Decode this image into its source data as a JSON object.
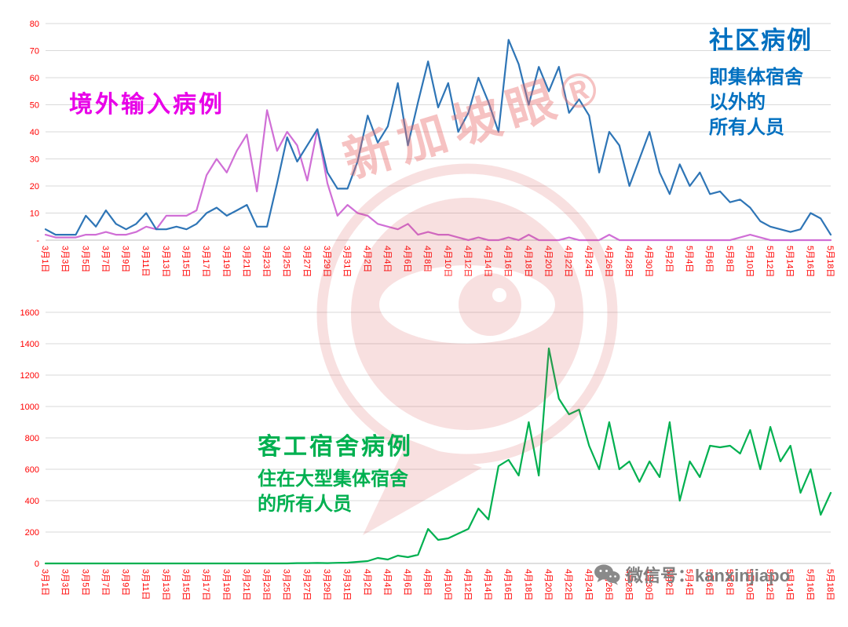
{
  "page": {
    "background": "#ffffff"
  },
  "watermark": {
    "text": "新加坡眼®",
    "color": "#e57373"
  },
  "footer": {
    "wechat_label": "微信号：kanxinjiapo",
    "color": "#7f7f7f"
  },
  "annotations": {
    "imported": {
      "text": "境外输入病例",
      "color": "#e800e8"
    },
    "community": {
      "title": "社区病例",
      "line1": "即集体宿舍",
      "line2": "以外的",
      "line3": "所有人员",
      "color": "#0070c0"
    },
    "dorm": {
      "title": "客工宿舍病例",
      "line1": "住在大型集体宿舍",
      "line2": "的所有人员",
      "color": "#00b050"
    }
  },
  "chart_data": [
    {
      "type": "line",
      "title": "",
      "xlabel": "",
      "ylabel": "",
      "ylim": [
        0,
        80
      ],
      "ytick_step": 10,
      "zero_label": "-",
      "axis_color": "#ff0000",
      "grid_color": "#d9d9d9",
      "grid": true,
      "legend_position": "inline-annotations",
      "xlabel_every": 2,
      "x": [
        "3月1日",
        "3月2日",
        "3月3日",
        "3月4日",
        "3月5日",
        "3月6日",
        "3月7日",
        "3月8日",
        "3月9日",
        "3月10日",
        "3月11日",
        "3月12日",
        "3月13日",
        "3月14日",
        "3月15日",
        "3月16日",
        "3月17日",
        "3月18日",
        "3月19日",
        "3月20日",
        "3月21日",
        "3月22日",
        "3月23日",
        "3月24日",
        "3月25日",
        "3月26日",
        "3月27日",
        "3月28日",
        "3月29日",
        "3月30日",
        "3月31日",
        "4月1日",
        "4月2日",
        "4月3日",
        "4月4日",
        "4月5日",
        "4月6日",
        "4月7日",
        "4月8日",
        "4月9日",
        "4月10日",
        "4月11日",
        "4月12日",
        "4月13日",
        "4月14日",
        "4月15日",
        "4月16日",
        "4月17日",
        "4月18日",
        "4月19日",
        "4月20日",
        "4月21日",
        "4月22日",
        "4月23日",
        "4月24日",
        "4月25日",
        "4月26日",
        "4月27日",
        "4月28日",
        "4月29日",
        "4月30日",
        "5月1日",
        "5月2日",
        "5月3日",
        "5月4日",
        "5月5日",
        "5月6日",
        "5月7日",
        "5月8日",
        "5月9日",
        "5月10日",
        "5月11日",
        "5月12日",
        "5月13日",
        "5月14日",
        "5月15日",
        "5月16日",
        "5月17日",
        "5月18日"
      ],
      "series": [
        {
          "name": "境外输入病例",
          "color": "#d06fd6",
          "values": [
            2,
            1,
            1,
            1,
            2,
            2,
            3,
            2,
            2,
            3,
            5,
            4,
            9,
            9,
            9,
            11,
            24,
            30,
            25,
            33,
            39,
            18,
            48,
            33,
            40,
            35,
            22,
            41,
            21,
            9,
            13,
            10,
            9,
            6,
            5,
            4,
            6,
            2,
            3,
            2,
            2,
            1,
            0,
            1,
            0,
            0,
            1,
            0,
            2,
            0,
            0,
            0,
            1,
            0,
            0,
            0,
            2,
            0,
            0,
            0,
            0,
            0,
            0,
            0,
            0,
            0,
            0,
            0,
            0,
            1,
            2,
            1,
            0,
            0,
            0,
            0,
            0,
            0,
            0
          ]
        },
        {
          "name": "社区病例（即集体宿舍以外的所有人员）",
          "color": "#2e75b6",
          "values": [
            4,
            2,
            2,
            2,
            9,
            5,
            11,
            6,
            4,
            6,
            10,
            4,
            4,
            5,
            4,
            6,
            10,
            12,
            9,
            11,
            13,
            5,
            5,
            21,
            38,
            29,
            35,
            41,
            25,
            19,
            19,
            29,
            46,
            36,
            42,
            58,
            35,
            51,
            66,
            49,
            58,
            40,
            47,
            60,
            51,
            40,
            74,
            65,
            50,
            64,
            55,
            64,
            47,
            52,
            46,
            25,
            40,
            35,
            20,
            30,
            40,
            25,
            17,
            28,
            20,
            25,
            17,
            18,
            14,
            15,
            12,
            7,
            5,
            4,
            3,
            4,
            10,
            8,
            2
          ]
        }
      ]
    },
    {
      "type": "line",
      "title": "",
      "xlabel": "",
      "ylabel": "",
      "ylim": [
        0,
        1600
      ],
      "ytick_step": 200,
      "zero_label": "0",
      "axis_color": "#ff0000",
      "grid_color": "#d9d9d9",
      "grid": true,
      "legend_position": "inline-annotations",
      "xlabel_every": 2,
      "x": [
        "3月1日",
        "3月2日",
        "3月3日",
        "3月4日",
        "3月5日",
        "3月6日",
        "3月7日",
        "3月8日",
        "3月9日",
        "3月10日",
        "3月11日",
        "3月12日",
        "3月13日",
        "3月14日",
        "3月15日",
        "3月16日",
        "3月17日",
        "3月18日",
        "3月19日",
        "3月20日",
        "3月21日",
        "3月22日",
        "3月23日",
        "3月24日",
        "3月25日",
        "3月26日",
        "3月27日",
        "3月28日",
        "3月29日",
        "3月30日",
        "3月31日",
        "4月1日",
        "4月2日",
        "4月3日",
        "4月4日",
        "4月5日",
        "4月6日",
        "4月7日",
        "4月8日",
        "4月9日",
        "4月10日",
        "4月11日",
        "4月12日",
        "4月13日",
        "4月14日",
        "4月15日",
        "4月16日",
        "4月17日",
        "4月18日",
        "4月19日",
        "4月20日",
        "4月21日",
        "4月22日",
        "4月23日",
        "4月24日",
        "4月25日",
        "4月26日",
        "4月27日",
        "4月28日",
        "4月29日",
        "4月30日",
        "5月1日",
        "5月2日",
        "5月3日",
        "5月4日",
        "5月5日",
        "5月6日",
        "5月7日",
        "5月8日",
        "5月9日",
        "5月10日",
        "5月11日",
        "5月12日",
        "5月13日",
        "5月14日",
        "5月15日",
        "5月16日",
        "5月17日",
        "5月18日"
      ],
      "series": [
        {
          "name": "客工宿舍病例（住在大型集体宿舍的所有人员）",
          "color": "#00b050",
          "values": [
            0,
            0,
            0,
            0,
            0,
            0,
            0,
            0,
            0,
            0,
            0,
            0,
            0,
            0,
            0,
            0,
            0,
            0,
            0,
            0,
            0,
            0,
            0,
            0,
            0,
            2,
            2,
            3,
            2,
            4,
            5,
            10,
            15,
            35,
            25,
            50,
            40,
            55,
            220,
            150,
            160,
            190,
            220,
            350,
            280,
            620,
            660,
            560,
            900,
            560,
            1370,
            1050,
            950,
            980,
            750,
            600,
            900,
            600,
            650,
            520,
            650,
            550,
            900,
            400,
            650,
            550,
            750,
            740,
            750,
            700,
            850,
            600,
            870,
            650,
            750,
            450,
            600,
            310,
            450
          ]
        }
      ]
    }
  ]
}
